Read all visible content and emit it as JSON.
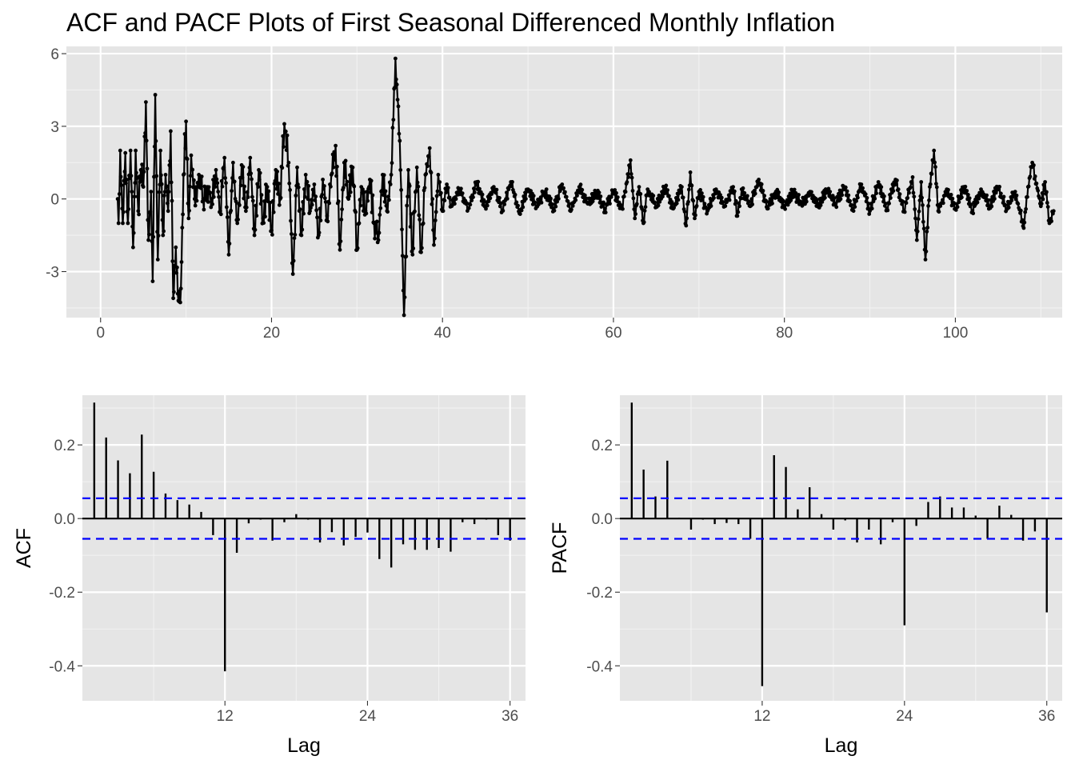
{
  "title": "ACF and PACF Plots of First Seasonal Differenced Monthly Inflation",
  "chart_data": [
    {
      "type": "line",
      "name": "time-series",
      "markers": true,
      "xlim": [
        -4,
        112.5
      ],
      "ylim": [
        -4.9,
        6.3
      ],
      "x_ticks": [
        0,
        20,
        40,
        60,
        80,
        100
      ],
      "y_ticks": [
        -3,
        0,
        3,
        6
      ],
      "grid": true,
      "xlabel": "",
      "ylabel": "",
      "keypoints": [
        [
          2.0,
          0.0
        ],
        [
          2.1,
          -1.0
        ],
        [
          2.3,
          2.0
        ],
        [
          2.6,
          -1.0
        ],
        [
          2.9,
          1.9
        ],
        [
          3.2,
          -1.0
        ],
        [
          3.5,
          2.0
        ],
        [
          3.8,
          -2.0
        ],
        [
          4.1,
          2.0
        ],
        [
          4.4,
          -0.5
        ],
        [
          4.7,
          1.2
        ],
        [
          5.0,
          0.5
        ],
        [
          5.3,
          4.0
        ],
        [
          5.6,
          -1.7
        ],
        [
          5.9,
          0.3
        ],
        [
          6.1,
          -3.4
        ],
        [
          6.4,
          4.3
        ],
        [
          6.7,
          -2.5
        ],
        [
          7.0,
          2.0
        ],
        [
          7.3,
          -1.5
        ],
        [
          7.6,
          1.0
        ],
        [
          7.9,
          -0.5
        ],
        [
          8.2,
          2.8
        ],
        [
          8.5,
          -4.1
        ],
        [
          8.8,
          -2.0
        ],
        [
          9.1,
          -4.2
        ],
        [
          9.4,
          -3.7
        ],
        [
          9.7,
          1.0
        ],
        [
          10.0,
          3.2
        ],
        [
          10.3,
          -0.8
        ],
        [
          10.6,
          1.8
        ],
        [
          11.0,
          0.0
        ],
        [
          11.5,
          1.0
        ],
        [
          12.0,
          0.0
        ],
        [
          12.5,
          0.5
        ],
        [
          13.0,
          0.0
        ],
        [
          13.5,
          1.2
        ],
        [
          14.0,
          -0.5
        ],
        [
          14.5,
          1.7
        ],
        [
          15.0,
          -2.3
        ],
        [
          15.5,
          1.5
        ],
        [
          16.0,
          -1.0
        ],
        [
          16.5,
          1.4
        ],
        [
          17.0,
          -0.5
        ],
        [
          17.5,
          1.7
        ],
        [
          18.0,
          -1.5
        ],
        [
          18.5,
          1.2
        ],
        [
          19.0,
          -0.8
        ],
        [
          19.5,
          0.5
        ],
        [
          20.0,
          -1.3
        ],
        [
          20.5,
          1.2
        ],
        [
          21.0,
          0.0
        ],
        [
          21.5,
          3.1
        ],
        [
          22.0,
          1.5
        ],
        [
          22.5,
          -3.1
        ],
        [
          23.0,
          1.3
        ],
        [
          23.5,
          -1.5
        ],
        [
          24.0,
          1.0
        ],
        [
          24.5,
          -0.5
        ],
        [
          25.0,
          0.6
        ],
        [
          25.5,
          -1.5
        ],
        [
          26.0,
          0.8
        ],
        [
          26.5,
          -0.7
        ],
        [
          27.0,
          1.0
        ],
        [
          27.5,
          2.2
        ],
        [
          28.0,
          -2.1
        ],
        [
          28.5,
          1.5
        ],
        [
          29.0,
          0.0
        ],
        [
          29.5,
          1.3
        ],
        [
          30.0,
          -2.1
        ],
        [
          30.5,
          0.5
        ],
        [
          31.0,
          -0.5
        ],
        [
          31.5,
          0.8
        ],
        [
          32.0,
          -1.0
        ],
        [
          32.5,
          -1.7
        ],
        [
          33.0,
          1.0
        ],
        [
          33.5,
          -0.5
        ],
        [
          34.0,
          1.0
        ],
        [
          34.5,
          5.8
        ],
        [
          35.0,
          2.4
        ],
        [
          35.5,
          -4.8
        ],
        [
          36.0,
          1.2
        ],
        [
          36.5,
          -2.3
        ],
        [
          37.0,
          1.3
        ],
        [
          37.5,
          -2.2
        ],
        [
          38.0,
          1.0
        ],
        [
          38.5,
          2.1
        ],
        [
          39.0,
          -1.9
        ],
        [
          39.5,
          1.0
        ],
        [
          40.0,
          -0.5
        ],
        [
          40.5,
          0.6
        ],
        [
          41.0,
          -0.3
        ],
        [
          42.0,
          0.4
        ],
        [
          43.0,
          -0.4
        ],
        [
          44.0,
          0.7
        ],
        [
          45.0,
          -0.3
        ],
        [
          46.0,
          0.5
        ],
        [
          47.0,
          -0.5
        ],
        [
          48.0,
          0.7
        ],
        [
          49.0,
          -0.6
        ],
        [
          50.0,
          0.4
        ],
        [
          51.0,
          -0.3
        ],
        [
          52.0,
          0.3
        ],
        [
          53.0,
          -0.4
        ],
        [
          54.0,
          0.6
        ],
        [
          55.0,
          -0.5
        ],
        [
          56.0,
          0.5
        ],
        [
          57.0,
          -0.2
        ],
        [
          58.0,
          0.3
        ],
        [
          59.0,
          -0.4
        ],
        [
          60.0,
          0.3
        ],
        [
          61.0,
          -0.4
        ],
        [
          62.0,
          1.6
        ],
        [
          62.5,
          -0.8
        ],
        [
          63.0,
          0.5
        ],
        [
          63.5,
          -1.0
        ],
        [
          64.0,
          0.4
        ],
        [
          65.0,
          -0.3
        ],
        [
          66.0,
          0.5
        ],
        [
          67.0,
          -0.4
        ],
        [
          68.0,
          0.5
        ],
        [
          68.5,
          -1.1
        ],
        [
          69.0,
          1.1
        ],
        [
          69.5,
          -0.8
        ],
        [
          70.0,
          0.3
        ],
        [
          71.0,
          -0.5
        ],
        [
          72.0,
          0.4
        ],
        [
          73.0,
          -0.3
        ],
        [
          74.0,
          0.5
        ],
        [
          74.5,
          -0.7
        ],
        [
          75.0,
          0.4
        ],
        [
          76.0,
          -0.3
        ],
        [
          77.0,
          0.8
        ],
        [
          78.0,
          -0.4
        ],
        [
          79.0,
          0.3
        ],
        [
          80.0,
          -0.3
        ],
        [
          81.0,
          0.3
        ],
        [
          82.0,
          -0.2
        ],
        [
          83.0,
          0.3
        ],
        [
          84.0,
          -0.2
        ],
        [
          85.0,
          0.3
        ],
        [
          86.0,
          -0.2
        ],
        [
          87.0,
          0.5
        ],
        [
          88.0,
          -0.4
        ],
        [
          89.0,
          0.6
        ],
        [
          90.0,
          -0.5
        ],
        [
          91.0,
          0.7
        ],
        [
          92.0,
          -0.4
        ],
        [
          93.0,
          0.8
        ],
        [
          94.0,
          -0.5
        ],
        [
          95.0,
          0.9
        ],
        [
          95.5,
          -1.7
        ],
        [
          96.0,
          0.7
        ],
        [
          96.5,
          -2.5
        ],
        [
          97.0,
          0.5
        ],
        [
          97.5,
          2.0
        ],
        [
          98.0,
          -0.5
        ],
        [
          99.0,
          0.4
        ],
        [
          100.0,
          -0.4
        ],
        [
          101.0,
          0.5
        ],
        [
          102.0,
          -0.5
        ],
        [
          103.0,
          0.4
        ],
        [
          104.0,
          -0.3
        ],
        [
          105.0,
          0.5
        ],
        [
          106.0,
          -0.4
        ],
        [
          107.0,
          0.3
        ],
        [
          108.0,
          -1.2
        ],
        [
          108.5,
          0.5
        ],
        [
          109.0,
          1.5
        ],
        [
          110.0,
          -0.3
        ],
        [
          110.5,
          0.7
        ],
        [
          111.0,
          -1.0
        ],
        [
          111.5,
          -0.5
        ]
      ]
    },
    {
      "type": "bar",
      "name": "acf",
      "xlabel": "Lag",
      "ylabel": "ACF",
      "xlim": [
        0,
        37.3
      ],
      "ylim": [
        -0.495,
        0.335
      ],
      "x_ticks": [
        12,
        24,
        36
      ],
      "y_ticks": [
        -0.4,
        -0.2,
        0.0,
        0.2
      ],
      "ci": 0.055,
      "grid": true,
      "lags": [
        1,
        2,
        3,
        4,
        5,
        6,
        7,
        8,
        9,
        10,
        11,
        12,
        13,
        14,
        15,
        16,
        17,
        18,
        19,
        20,
        21,
        22,
        23,
        24,
        25,
        26,
        27,
        28,
        29,
        30,
        31,
        32,
        33,
        34,
        35,
        36
      ],
      "values": [
        0.315,
        0.22,
        0.158,
        0.123,
        0.228,
        0.127,
        0.068,
        0.05,
        0.038,
        0.018,
        -0.045,
        -0.415,
        -0.093,
        -0.013,
        -0.003,
        -0.06,
        -0.01,
        0.012,
        -0.003,
        -0.065,
        -0.037,
        -0.073,
        -0.05,
        -0.038,
        -0.11,
        -0.133,
        -0.07,
        -0.085,
        -0.085,
        -0.08,
        -0.09,
        -0.01,
        -0.015,
        -0.003,
        -0.045,
        -0.06
      ]
    },
    {
      "type": "bar",
      "name": "pacf",
      "xlabel": "Lag",
      "ylabel": "PACF",
      "xlim": [
        0,
        37.3
      ],
      "ylim": [
        -0.495,
        0.335
      ],
      "x_ticks": [
        12,
        24,
        36
      ],
      "y_ticks": [
        -0.4,
        -0.2,
        0.0,
        0.2
      ],
      "ci": 0.055,
      "grid": true,
      "lags": [
        1,
        2,
        3,
        4,
        5,
        6,
        7,
        8,
        9,
        10,
        11,
        12,
        13,
        14,
        15,
        16,
        17,
        18,
        19,
        20,
        21,
        22,
        23,
        24,
        25,
        26,
        27,
        28,
        29,
        30,
        31,
        32,
        33,
        34,
        35,
        36
      ],
      "values": [
        0.315,
        0.133,
        0.06,
        0.157,
        0.002,
        -0.03,
        -0.003,
        -0.015,
        -0.012,
        -0.015,
        -0.055,
        -0.455,
        0.172,
        0.14,
        0.025,
        0.085,
        0.012,
        -0.03,
        -0.005,
        -0.065,
        -0.03,
        -0.07,
        -0.01,
        -0.29,
        -0.02,
        0.045,
        0.06,
        0.03,
        0.03,
        0.008,
        -0.055,
        0.035,
        0.01,
        -0.06,
        -0.035,
        -0.255
      ]
    }
  ]
}
